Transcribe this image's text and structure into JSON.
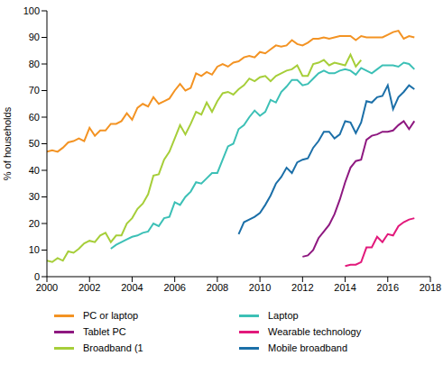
{
  "chart_data": {
    "type": "line",
    "y_label": "% of households",
    "x": [
      2000,
      2000.25,
      2000.5,
      2000.75,
      2001,
      2001.25,
      2001.5,
      2001.75,
      2002,
      2002.25,
      2002.5,
      2002.75,
      2003,
      2003.25,
      2003.5,
      2003.75,
      2004,
      2004.25,
      2004.5,
      2004.75,
      2005,
      2005.25,
      2005.5,
      2005.75,
      2006,
      2006.25,
      2006.5,
      2006.75,
      2007,
      2007.25,
      2007.5,
      2007.75,
      2008,
      2008.25,
      2008.5,
      2008.75,
      2009,
      2009.25,
      2009.5,
      2009.75,
      2010,
      2010.25,
      2010.5,
      2010.75,
      2011,
      2011.25,
      2011.5,
      2011.75,
      2012,
      2012.25,
      2012.5,
      2012.75,
      2013,
      2013.25,
      2013.5,
      2013.75,
      2014,
      2014.25,
      2014.5,
      2014.75,
      2015,
      2015.25,
      2015.5,
      2015.75,
      2016,
      2016.25,
      2016.5,
      2016.75,
      2017,
      2017.25
    ],
    "series": [
      {
        "name": "PC or laptop",
        "color": "#f39323",
        "values": [
          47,
          47.5,
          47,
          48.5,
          50.5,
          51,
          52,
          51,
          56,
          53,
          55,
          55,
          57.5,
          57.5,
          58.5,
          61.5,
          59,
          63.5,
          65,
          64,
          67.5,
          65,
          66,
          67,
          70,
          72.5,
          70,
          71,
          76.5,
          75.5,
          77,
          76,
          79,
          80,
          79,
          80.5,
          81,
          82.5,
          83,
          82.5,
          84.5,
          84,
          85.5,
          87,
          86.5,
          87,
          89,
          87.5,
          87,
          88,
          89.5,
          89.5,
          90,
          89.5,
          90,
          90.5,
          90.5,
          90.5,
          89,
          90.5,
          90,
          90,
          90,
          90,
          91,
          92,
          92.5,
          89.5,
          90.5,
          90
        ]
      },
      {
        "name": "Laptop",
        "color": "#3cc0b6",
        "values": [
          null,
          null,
          null,
          null,
          null,
          null,
          null,
          null,
          null,
          null,
          null,
          null,
          10.5,
          12,
          13,
          14,
          15,
          15.5,
          16.5,
          17,
          20,
          19,
          22,
          22.5,
          28,
          27,
          30,
          32,
          35.5,
          35,
          37,
          39,
          39,
          44,
          49,
          50,
          55.5,
          57,
          60,
          62.5,
          60.5,
          62,
          66.5,
          65.5,
          69.5,
          71.5,
          74,
          74,
          72,
          72.5,
          74.5,
          76.5,
          77.5,
          76.5,
          76.5,
          77.5,
          78,
          77.5,
          76,
          78.5,
          77.5,
          76.5,
          78,
          79.5,
          79.5,
          79.5,
          79,
          80.5,
          80,
          78
        ]
      },
      {
        "name": "Tablet PC",
        "color": "#8e1880",
        "values": [
          null,
          null,
          null,
          null,
          null,
          null,
          null,
          null,
          null,
          null,
          null,
          null,
          null,
          null,
          null,
          null,
          null,
          null,
          null,
          null,
          null,
          null,
          null,
          null,
          null,
          null,
          null,
          null,
          null,
          null,
          null,
          null,
          null,
          null,
          null,
          null,
          null,
          null,
          null,
          null,
          null,
          null,
          null,
          null,
          null,
          null,
          null,
          null,
          7.5,
          8,
          10,
          14.5,
          17,
          19.5,
          23.5,
          29,
          35.5,
          41,
          43.5,
          44,
          51.5,
          53,
          53.5,
          54.5,
          54.5,
          55,
          57,
          58.5,
          55.5,
          58.5
        ]
      },
      {
        "name": "Wearable technology",
        "color": "#e2197b",
        "values": [
          null,
          null,
          null,
          null,
          null,
          null,
          null,
          null,
          null,
          null,
          null,
          null,
          null,
          null,
          null,
          null,
          null,
          null,
          null,
          null,
          null,
          null,
          null,
          null,
          null,
          null,
          null,
          null,
          null,
          null,
          null,
          null,
          null,
          null,
          null,
          null,
          null,
          null,
          null,
          null,
          null,
          null,
          null,
          null,
          null,
          null,
          null,
          null,
          null,
          null,
          null,
          null,
          null,
          null,
          null,
          null,
          4,
          4.5,
          4.5,
          5.5,
          11,
          11,
          15,
          13,
          16,
          15.5,
          19,
          20.5,
          21.5,
          22
        ]
      },
      {
        "name": "Broadband (1",
        "color": "#a6ce39",
        "values": [
          6,
          5.5,
          7,
          6,
          9.5,
          9,
          10.5,
          12.5,
          13.5,
          13,
          15.5,
          16.5,
          13,
          15.5,
          15.5,
          20,
          22,
          25.5,
          27.5,
          31,
          38,
          38.5,
          44,
          47,
          52,
          57,
          53.5,
          57.5,
          62,
          61,
          65.5,
          62,
          66,
          69,
          69.5,
          68.5,
          70.5,
          72,
          74.5,
          73.5,
          75,
          75.5,
          73.5,
          75.5,
          76.5,
          77.5,
          78,
          79.5,
          75.5,
          75.5,
          80,
          80.5,
          81.5,
          79.5,
          80.5,
          80,
          79.5,
          83.5,
          79,
          81.5,
          null,
          null,
          null,
          null,
          null,
          null,
          null,
          null,
          null,
          null
        ]
      },
      {
        "name": "Mobile broadband",
        "color": "#1b6fa8",
        "values": [
          null,
          null,
          null,
          null,
          null,
          null,
          null,
          null,
          null,
          null,
          null,
          null,
          null,
          null,
          null,
          null,
          null,
          null,
          null,
          null,
          null,
          null,
          null,
          null,
          null,
          null,
          null,
          null,
          null,
          null,
          null,
          null,
          null,
          null,
          null,
          null,
          16,
          20.5,
          21.5,
          22.5,
          24,
          27,
          30.5,
          35,
          37.5,
          41,
          39,
          43,
          44,
          44.5,
          48.5,
          51,
          54.5,
          54.5,
          52,
          53.5,
          58.5,
          58,
          54,
          58,
          66,
          65.5,
          67.5,
          68,
          72,
          63,
          67.5,
          69.5,
          72,
          70.5
        ]
      }
    ],
    "xlim": [
      2000,
      2018
    ],
    "xticks": [
      2000,
      2002,
      2004,
      2006,
      2008,
      2010,
      2012,
      2014,
      2016,
      2018
    ],
    "ylim": [
      0,
      100
    ],
    "yticks": [
      0,
      10,
      20,
      30,
      40,
      50,
      60,
      70,
      80,
      90,
      100
    ],
    "grid": false,
    "legend": "bottom"
  }
}
